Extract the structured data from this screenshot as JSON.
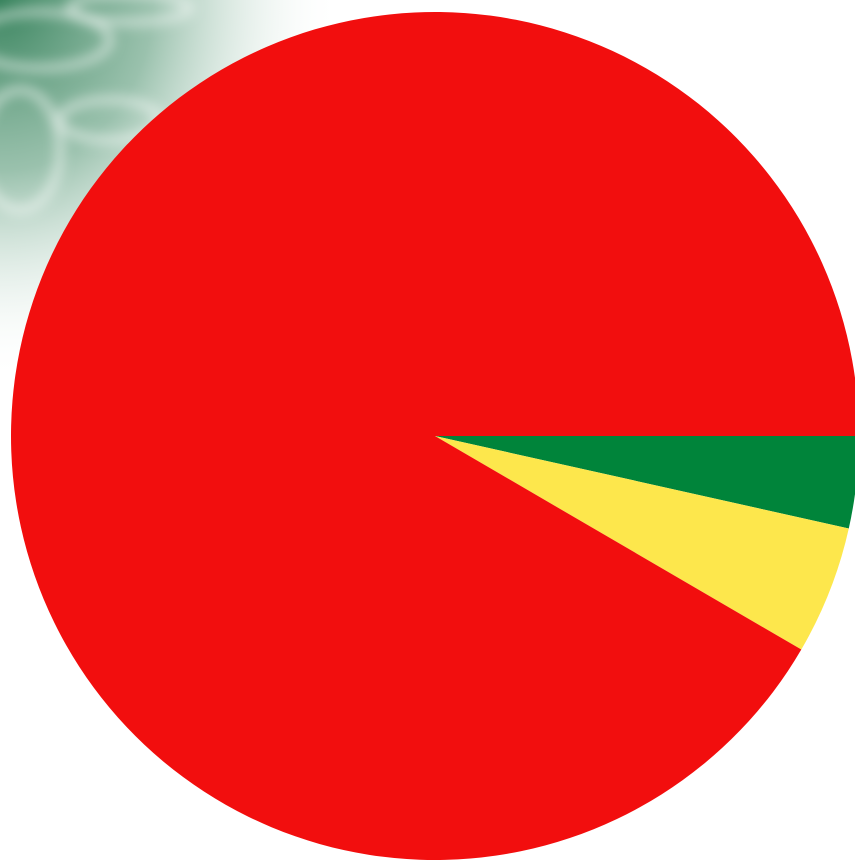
{
  "chart_data": {
    "type": "pie",
    "start_angle_deg": 0,
    "direction": "clockwise",
    "slices": [
      {
        "value": 3.5,
        "color": "#00843a"
      },
      {
        "value": 4.9,
        "color": "#fde74c"
      },
      {
        "value": 91.6,
        "color": "#f20e0e"
      }
    ]
  },
  "background": {
    "texture": "green-watercolor-corner",
    "base_color": "#ffffff",
    "accent_color": "#2e7d55"
  }
}
